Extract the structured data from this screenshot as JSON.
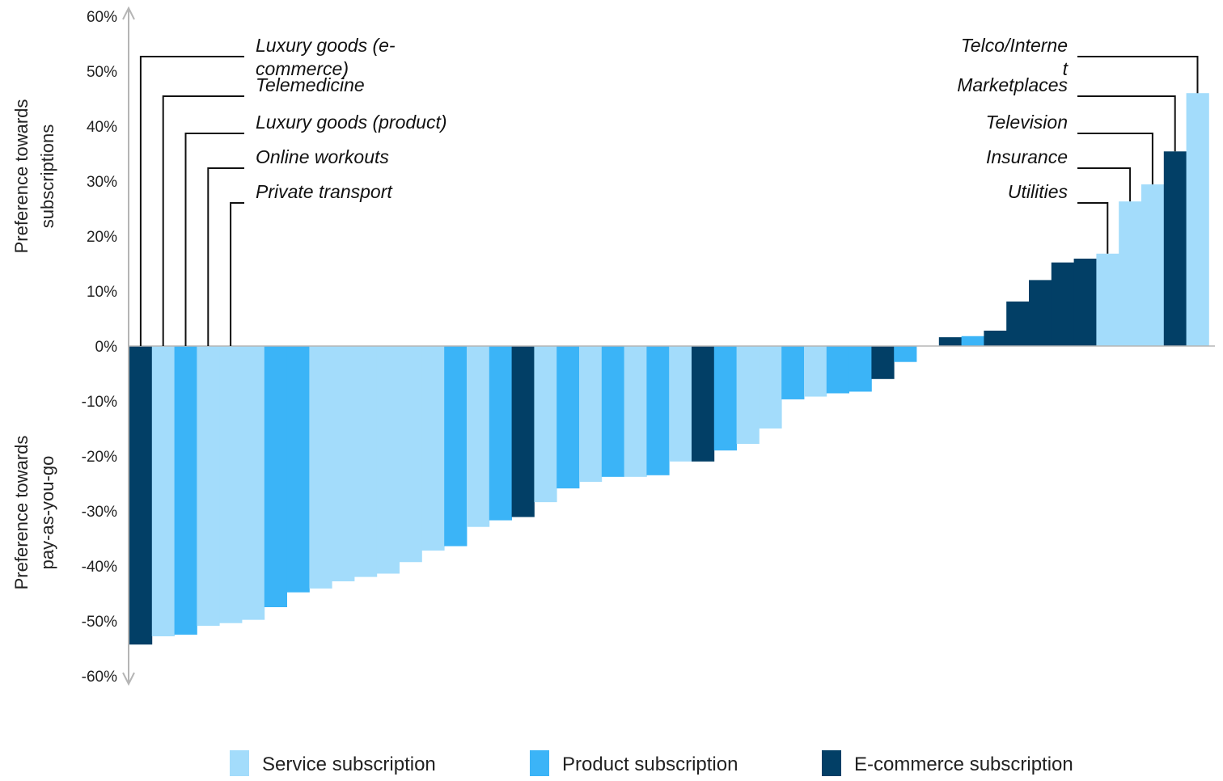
{
  "chart_data": {
    "type": "bar",
    "ylim": [
      -60,
      60
    ],
    "yticks": [
      60,
      50,
      40,
      30,
      20,
      10,
      0,
      -10,
      -20,
      -30,
      -40,
      -50,
      -60
    ],
    "ytick_labels": [
      "60%",
      "50%",
      "40%",
      "30%",
      "20%",
      "10%",
      "0%",
      "-10%",
      "-20%",
      "-30%",
      "-40%",
      "-50%",
      "-60%"
    ],
    "ylabel_top": [
      "Preference towards",
      "subscriptions"
    ],
    "ylabel_bottom": [
      "Preference towards",
      "pay-as-you-go"
    ],
    "grid": false,
    "legend_position": "bottom",
    "colors": {
      "service": "#a3dcfb",
      "product": "#3bb4f7",
      "ecommerce": "#023f66"
    },
    "series": [
      {
        "key": "service",
        "name": "Service subscription"
      },
      {
        "key": "product",
        "name": "Product subscription"
      },
      {
        "key": "ecommerce",
        "name": "E-commerce subscription"
      }
    ],
    "bars": [
      {
        "value": -54.3,
        "type": "ecommerce",
        "label": "Luxury goods (e-commerce)"
      },
      {
        "value": -52.8,
        "type": "service",
        "label": "Telemedicine"
      },
      {
        "value": -52.5,
        "type": "product",
        "label": "Luxury goods (product)"
      },
      {
        "value": -50.9,
        "type": "service",
        "label": "Online workouts"
      },
      {
        "value": -50.4,
        "type": "service",
        "label": "Private transport"
      },
      {
        "value": -49.8,
        "type": "service"
      },
      {
        "value": -47.5,
        "type": "product"
      },
      {
        "value": -44.8,
        "type": "product"
      },
      {
        "value": -44.1,
        "type": "service"
      },
      {
        "value": -42.8,
        "type": "service"
      },
      {
        "value": -42.0,
        "type": "service"
      },
      {
        "value": -41.4,
        "type": "service"
      },
      {
        "value": -39.3,
        "type": "service"
      },
      {
        "value": -37.2,
        "type": "service"
      },
      {
        "value": -36.4,
        "type": "product"
      },
      {
        "value": -32.9,
        "type": "service"
      },
      {
        "value": -31.7,
        "type": "product"
      },
      {
        "value": -31.1,
        "type": "ecommerce"
      },
      {
        "value": -28.4,
        "type": "service"
      },
      {
        "value": -25.9,
        "type": "product"
      },
      {
        "value": -24.7,
        "type": "service"
      },
      {
        "value": -23.8,
        "type": "product"
      },
      {
        "value": -23.8,
        "type": "service"
      },
      {
        "value": -23.5,
        "type": "product"
      },
      {
        "value": -21.0,
        "type": "service"
      },
      {
        "value": -21.0,
        "type": "ecommerce"
      },
      {
        "value": -19.0,
        "type": "product"
      },
      {
        "value": -17.8,
        "type": "service"
      },
      {
        "value": -15.0,
        "type": "service"
      },
      {
        "value": -9.7,
        "type": "product"
      },
      {
        "value": -9.2,
        "type": "service"
      },
      {
        "value": -8.6,
        "type": "product"
      },
      {
        "value": -8.3,
        "type": "product"
      },
      {
        "value": -6.0,
        "type": "ecommerce"
      },
      {
        "value": -2.9,
        "type": "product"
      },
      {
        "value": 0.0,
        "type": "service"
      },
      {
        "value": 1.6,
        "type": "ecommerce"
      },
      {
        "value": 1.8,
        "type": "product"
      },
      {
        "value": 2.8,
        "type": "ecommerce"
      },
      {
        "value": 8.1,
        "type": "ecommerce"
      },
      {
        "value": 12.0,
        "type": "ecommerce"
      },
      {
        "value": 15.2,
        "type": "ecommerce"
      },
      {
        "value": 15.9,
        "type": "ecommerce"
      },
      {
        "value": 16.8,
        "type": "service",
        "label": "Utilities"
      },
      {
        "value": 26.3,
        "type": "service",
        "label": "Insurance"
      },
      {
        "value": 29.4,
        "type": "service",
        "label": "Television"
      },
      {
        "value": 35.4,
        "type": "ecommerce",
        "label": "Marketplaces"
      },
      {
        "value": 46.0,
        "type": "service",
        "label": "Telco/Internet"
      }
    ],
    "callouts_left": [
      {
        "bar": 0,
        "lines": [
          "Luxury goods (e-",
          "commerce)"
        ]
      },
      {
        "bar": 1,
        "lines": [
          "Telemedicine"
        ]
      },
      {
        "bar": 2,
        "lines": [
          "Luxury goods (product)"
        ]
      },
      {
        "bar": 3,
        "lines": [
          "Online workouts"
        ]
      },
      {
        "bar": 4,
        "lines": [
          "Private transport"
        ]
      }
    ],
    "callouts_right": [
      {
        "bar": 47,
        "lines": [
          "Telco/Interne",
          "t"
        ]
      },
      {
        "bar": 46,
        "lines": [
          "Marketplaces"
        ]
      },
      {
        "bar": 45,
        "lines": [
          "Television"
        ]
      },
      {
        "bar": 44,
        "lines": [
          "Insurance"
        ]
      },
      {
        "bar": 43,
        "lines": [
          "Utilities"
        ]
      }
    ]
  }
}
